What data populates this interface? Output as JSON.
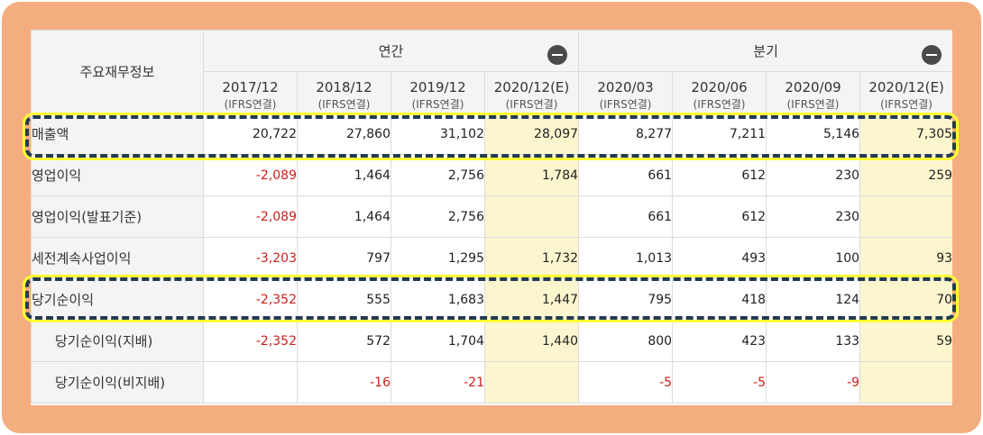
{
  "table": {
    "corner_label": "주요재무정보",
    "groups": {
      "annual": "연간",
      "quarterly": "분기"
    },
    "columns": [
      {
        "period": "2017/12",
        "basis": "(IFRS연결)"
      },
      {
        "period": "2018/12",
        "basis": "(IFRS연결)"
      },
      {
        "period": "2019/12",
        "basis": "(IFRS연결)"
      },
      {
        "period": "2020/12(E)",
        "basis": "(IFRS연결)"
      },
      {
        "period": "2020/03",
        "basis": "(IFRS연결)"
      },
      {
        "period": "2020/06",
        "basis": "(IFRS연결)"
      },
      {
        "period": "2020/09",
        "basis": "(IFRS연결)"
      },
      {
        "period": "2020/12(E)",
        "basis": "(IFRS연결)"
      }
    ],
    "rows": [
      {
        "label": "매출액",
        "values": [
          "20,722",
          "27,860",
          "31,102",
          "28,097",
          "8,277",
          "7,211",
          "5,146",
          "7,305"
        ]
      },
      {
        "label": "영업이익",
        "values": [
          "-2,089",
          "1,464",
          "2,756",
          "1,784",
          "661",
          "612",
          "230",
          "259"
        ]
      },
      {
        "label": "영업이익(발표기준)",
        "values": [
          "-2,089",
          "1,464",
          "2,756",
          "",
          "661",
          "612",
          "230",
          ""
        ]
      },
      {
        "label": "세전계속사업이익",
        "values": [
          "-3,203",
          "797",
          "1,295",
          "1,732",
          "1,013",
          "493",
          "100",
          "93"
        ]
      },
      {
        "label": "당기순이익",
        "values": [
          "-2,352",
          "555",
          "1,683",
          "1,447",
          "795",
          "418",
          "124",
          "70"
        ]
      },
      {
        "label": "당기순이익(지배)",
        "values": [
          "-2,352",
          "572",
          "1,704",
          "1,440",
          "800",
          "423",
          "133",
          "59"
        ]
      },
      {
        "label": "당기순이익(비지배)",
        "values": [
          "",
          "-16",
          "-21",
          "",
          "-5",
          "-5",
          "-9",
          ""
        ]
      }
    ]
  },
  "colors": {
    "frame": "#f4ad7f",
    "estimate_cell": "#fcf6cf",
    "negative_text": "#d11d1d",
    "highlight_dash": "#223a54",
    "highlight_glow": "#ffff33"
  },
  "icons": {
    "collapse_annual": "minus-circle-icon",
    "collapse_quarterly": "minus-circle-icon"
  }
}
